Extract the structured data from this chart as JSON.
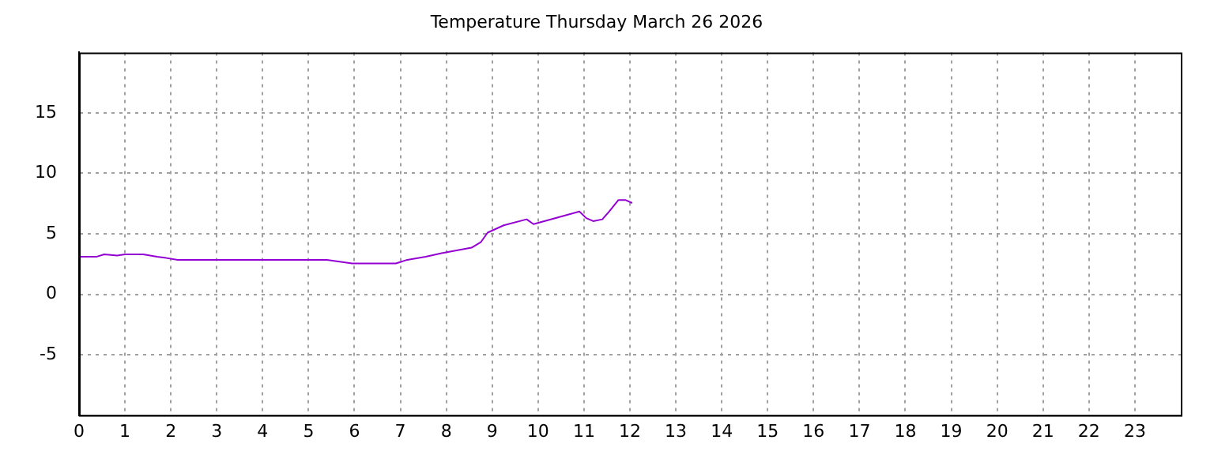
{
  "chart_data": {
    "type": "line",
    "title": "Temperature Thursday March 26 2026",
    "x": [
      0,
      0.375,
      0.55,
      0.83,
      1.0,
      1.4,
      1.7,
      1.9,
      2.15,
      5.4,
      5.95,
      6.9,
      7.15,
      7.55,
      7.9,
      8.55,
      8.75,
      8.9,
      9.25,
      9.75,
      9.9,
      10.9,
      11.05,
      11.2,
      11.4,
      11.55,
      11.75,
      11.9,
      12.05
    ],
    "series": [
      {
        "color": "#9400d3",
        "values": [
          3.1,
          3.1,
          3.3,
          3.2,
          3.3,
          3.3,
          3.1,
          3.0,
          2.85,
          2.85,
          2.55,
          2.55,
          2.85,
          3.1,
          3.4,
          3.85,
          4.3,
          5.1,
          5.7,
          6.2,
          5.8,
          6.85,
          6.3,
          6.05,
          6.2,
          6.85,
          7.8,
          7.8,
          7.55
        ]
      }
    ],
    "xlim": [
      0,
      24
    ],
    "xticks": [
      0,
      1,
      2,
      3,
      4,
      5,
      6,
      7,
      8,
      9,
      10,
      11,
      12,
      13,
      14,
      15,
      16,
      17,
      18,
      19,
      20,
      21,
      22,
      23
    ],
    "ylim": [
      -10,
      20
    ],
    "yticks": [
      -5,
      0,
      5,
      10,
      15
    ],
    "grid": true,
    "legend": false,
    "marker": "none",
    "line_style": "solid"
  }
}
